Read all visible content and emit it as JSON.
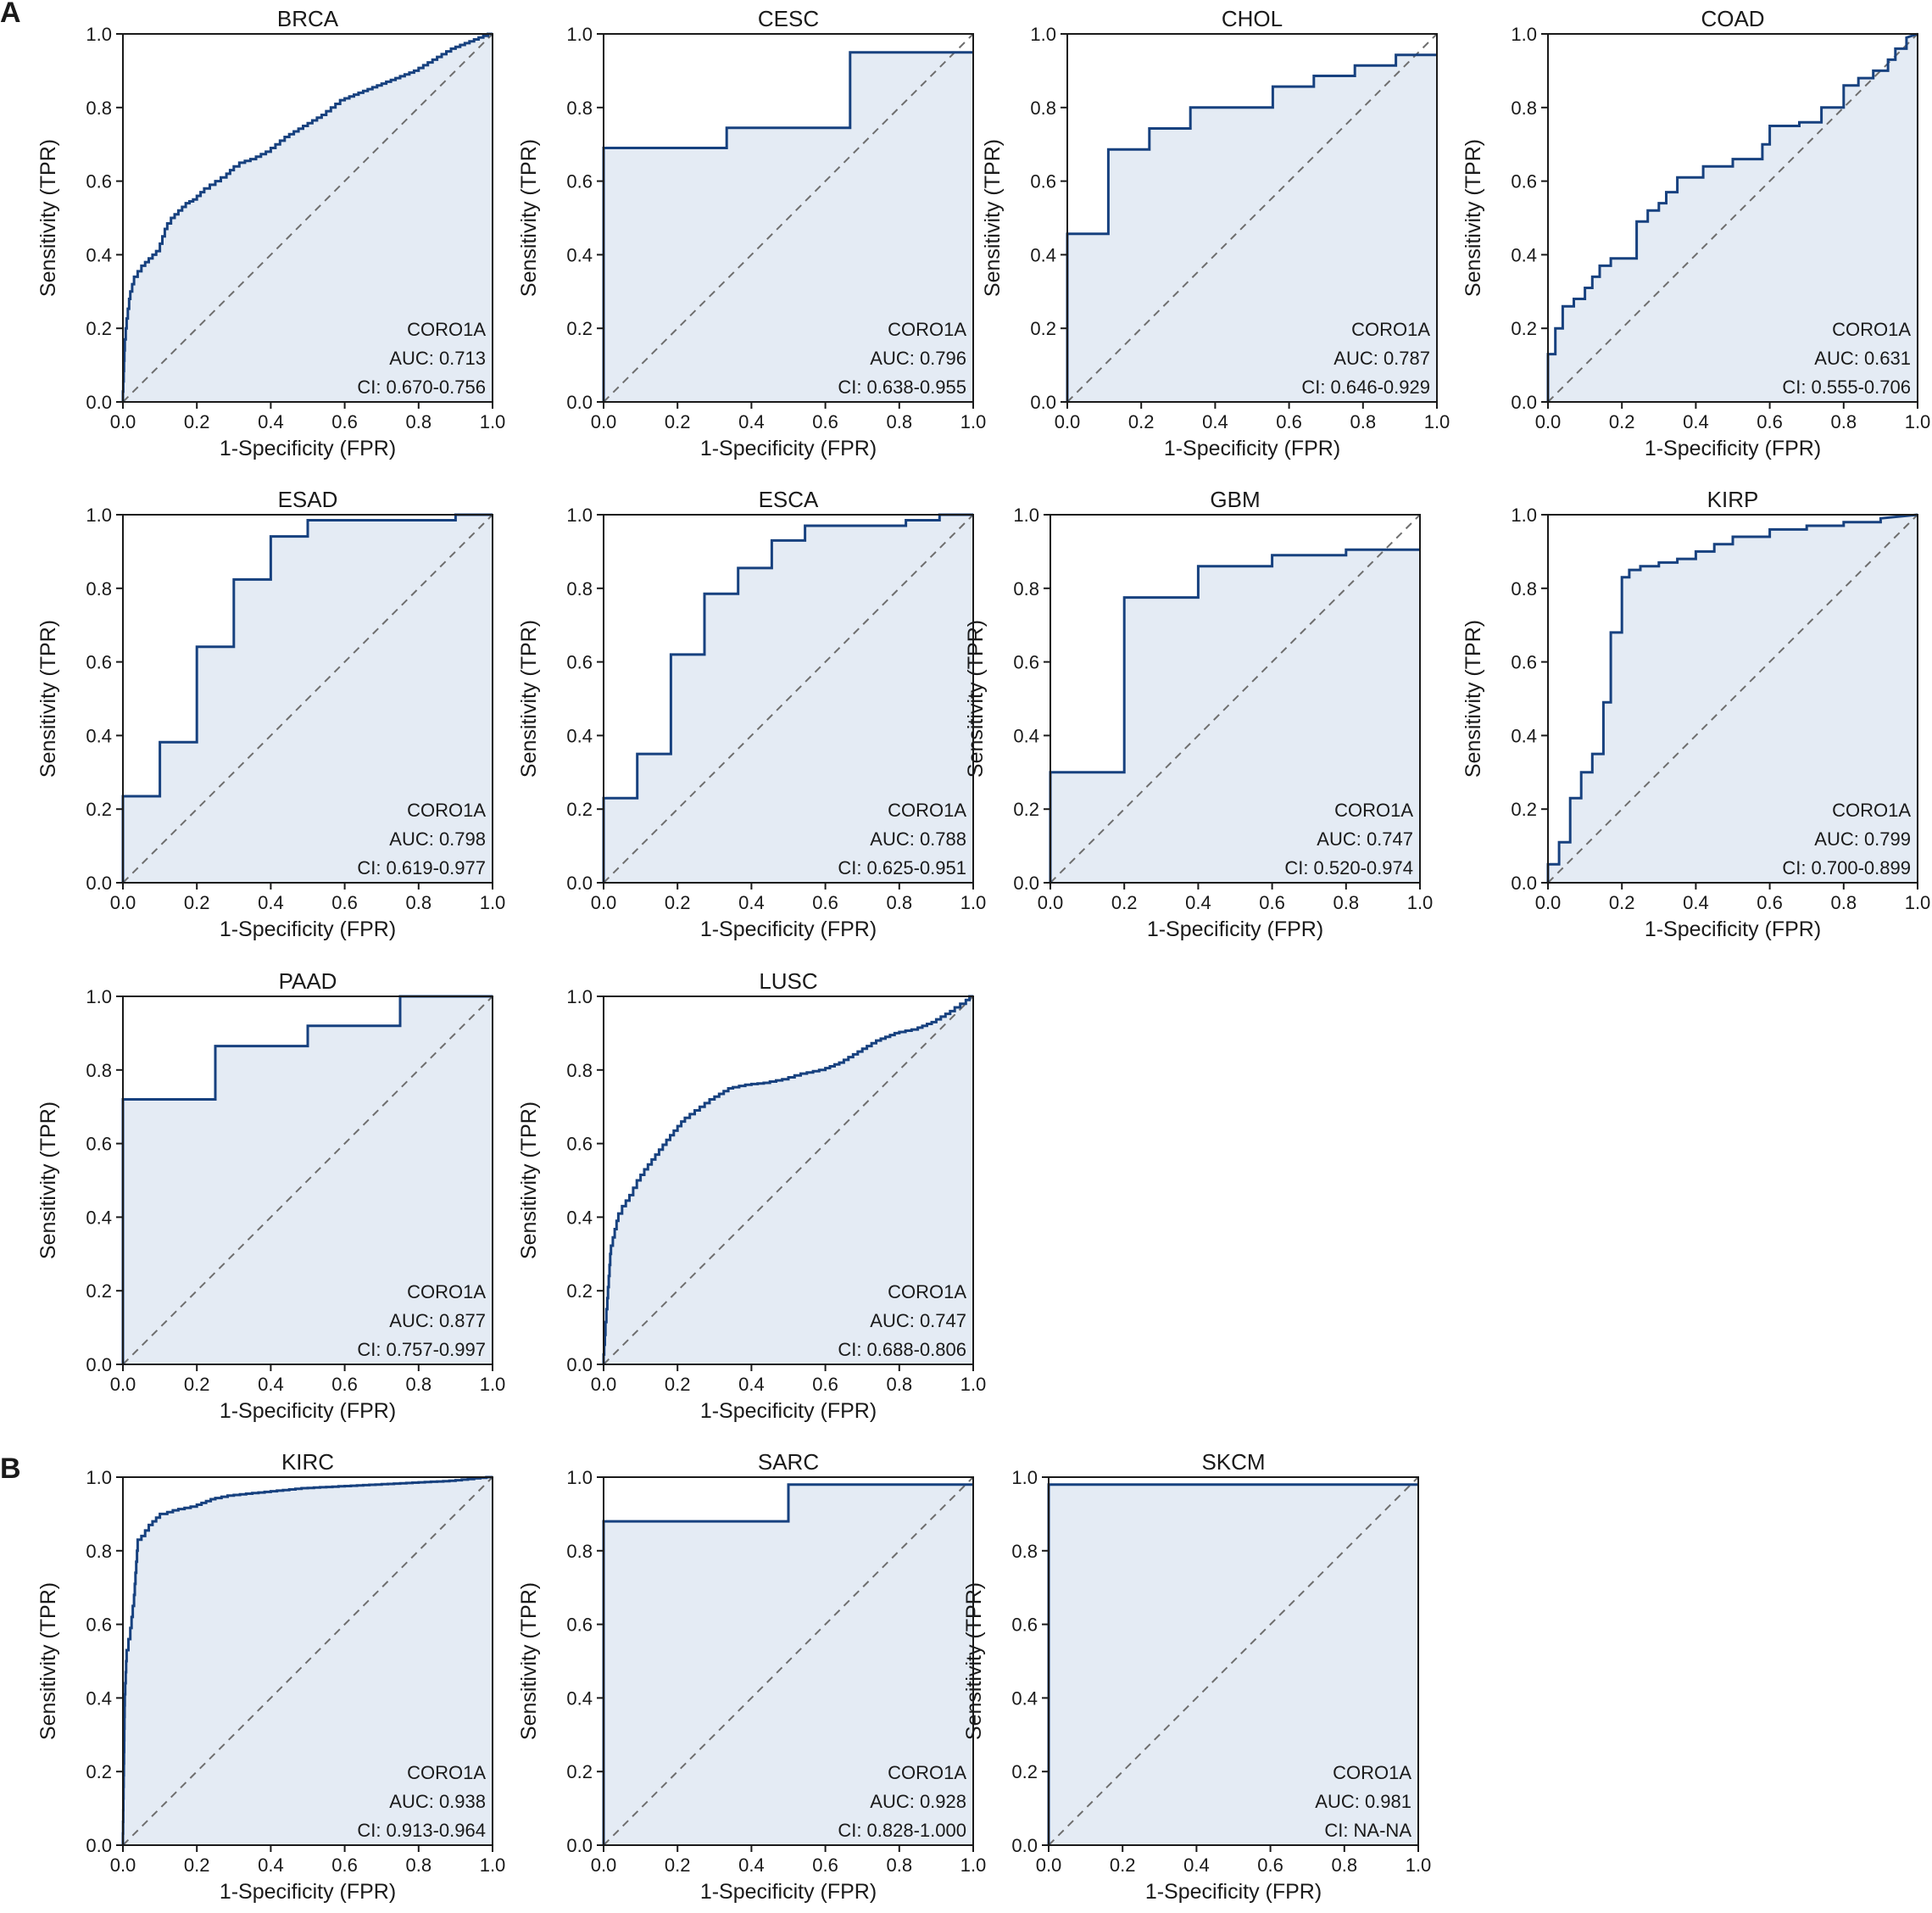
{
  "figure": {
    "panel_labels": [
      "A",
      "B"
    ],
    "colors": {
      "curve": "#17417f",
      "fill": "#e4ebf4",
      "diagonal": "#6e6e6e",
      "axis": "#1a1a1a",
      "text": "#1a1a1a",
      "background": "#ffffff"
    }
  },
  "chart_data": [
    {
      "type": "line",
      "panel": "A",
      "title": "BRCA",
      "xlabel": "1-Specificity (FPR)",
      "ylabel": "Sensitivity (TPR)",
      "xlim": [
        0,
        1
      ],
      "ylim": [
        0,
        1
      ],
      "x_ticks": [
        "0.0",
        "0.2",
        "0.4",
        "0.6",
        "0.8",
        "1.0"
      ],
      "y_ticks": [
        "0.0",
        "0.2",
        "0.4",
        "0.6",
        "0.8",
        "1.0"
      ],
      "annotation": [
        "CORO1A",
        "AUC: 0.713",
        "CI: 0.670-0.756"
      ],
      "series": [
        {
          "name": "CORO1A",
          "curve": "smooth",
          "x": [
            0,
            0.005,
            0.01,
            0.02,
            0.03,
            0.04,
            0.06,
            0.08,
            0.1,
            0.12,
            0.14,
            0.16,
            0.18,
            0.2,
            0.22,
            0.25,
            0.28,
            0.3,
            0.33,
            0.36,
            0.4,
            0.45,
            0.5,
            0.55,
            0.6,
            0.65,
            0.7,
            0.75,
            0.8,
            0.85,
            0.9,
            0.95,
            1.0
          ],
          "y": [
            0,
            0.14,
            0.2,
            0.28,
            0.32,
            0.34,
            0.37,
            0.39,
            0.41,
            0.47,
            0.5,
            0.52,
            0.54,
            0.55,
            0.57,
            0.59,
            0.61,
            0.63,
            0.65,
            0.66,
            0.68,
            0.72,
            0.75,
            0.78,
            0.82,
            0.84,
            0.86,
            0.88,
            0.9,
            0.93,
            0.96,
            0.98,
            1.0
          ]
        }
      ]
    },
    {
      "type": "line",
      "panel": "A",
      "title": "CESC",
      "xlabel": "1-Specificity (FPR)",
      "ylabel": "Sensitivity (TPR)",
      "xlim": [
        0,
        1
      ],
      "ylim": [
        0,
        1
      ],
      "x_ticks": [
        "0.0",
        "0.2",
        "0.4",
        "0.6",
        "0.8",
        "1.0"
      ],
      "y_ticks": [
        "0.0",
        "0.2",
        "0.4",
        "0.6",
        "0.8",
        "1.0"
      ],
      "annotation": [
        "CORO1A",
        "AUC: 0.796",
        "CI: 0.638-0.955"
      ],
      "series": [
        {
          "name": "CORO1A",
          "curve": "step",
          "x": [
            0,
            0,
            0.333,
            0.333,
            0.667,
            0.667,
            1.0
          ],
          "y": [
            0,
            0.69,
            0.69,
            0.745,
            0.745,
            0.95,
            0.95
          ]
        }
      ]
    },
    {
      "type": "line",
      "panel": "A",
      "title": "CHOL",
      "xlabel": "1-Specificity (FPR)",
      "ylabel": "Sensitivity (TPR)",
      "xlim": [
        0,
        1
      ],
      "ylim": [
        0,
        1
      ],
      "x_ticks": [
        "0.0",
        "0.2",
        "0.4",
        "0.6",
        "0.8",
        "1.0"
      ],
      "y_ticks": [
        "0.0",
        "0.2",
        "0.4",
        "0.6",
        "0.8",
        "1.0"
      ],
      "annotation": [
        "CORO1A",
        "AUC: 0.787",
        "CI: 0.646-0.929"
      ],
      "series": [
        {
          "name": "CORO1A",
          "curve": "step",
          "x": [
            0,
            0,
            0.111,
            0.111,
            0.222,
            0.222,
            0.333,
            0.333,
            0.556,
            0.556,
            0.667,
            0.667,
            0.778,
            0.778,
            0.889,
            0.889,
            1.0
          ],
          "y": [
            0,
            0.457,
            0.457,
            0.686,
            0.686,
            0.743,
            0.743,
            0.8,
            0.8,
            0.857,
            0.857,
            0.886,
            0.886,
            0.914,
            0.914,
            0.943,
            0.943
          ]
        }
      ]
    },
    {
      "type": "line",
      "panel": "A",
      "title": "COAD",
      "xlabel": "1-Specificity (FPR)",
      "ylabel": "Sensitivity (TPR)",
      "xlim": [
        0,
        1
      ],
      "ylim": [
        0,
        1
      ],
      "x_ticks": [
        "0.0",
        "0.2",
        "0.4",
        "0.6",
        "0.8",
        "1.0"
      ],
      "y_ticks": [
        "0.0",
        "0.2",
        "0.4",
        "0.6",
        "0.8",
        "1.0"
      ],
      "annotation": [
        "CORO1A",
        "AUC: 0.631",
        "CI: 0.555-0.706"
      ],
      "series": [
        {
          "name": "CORO1A",
          "curve": "step",
          "x": [
            0,
            0,
            0.02,
            0.02,
            0.04,
            0.04,
            0.07,
            0.07,
            0.1,
            0.1,
            0.12,
            0.12,
            0.14,
            0.14,
            0.17,
            0.17,
            0.24,
            0.24,
            0.27,
            0.27,
            0.3,
            0.3,
            0.32,
            0.32,
            0.35,
            0.35,
            0.42,
            0.42,
            0.5,
            0.5,
            0.58,
            0.58,
            0.6,
            0.6,
            0.68,
            0.68,
            0.74,
            0.74,
            0.8,
            0.8,
            0.84,
            0.84,
            0.88,
            0.88,
            0.92,
            0.92,
            0.94,
            0.94,
            0.97,
            0.97,
            1.0
          ],
          "y": [
            0,
            0.13,
            0.13,
            0.2,
            0.2,
            0.26,
            0.26,
            0.28,
            0.28,
            0.31,
            0.31,
            0.34,
            0.34,
            0.37,
            0.37,
            0.39,
            0.39,
            0.49,
            0.49,
            0.52,
            0.52,
            0.54,
            0.54,
            0.57,
            0.57,
            0.61,
            0.61,
            0.64,
            0.64,
            0.66,
            0.66,
            0.7,
            0.7,
            0.75,
            0.75,
            0.76,
            0.76,
            0.8,
            0.8,
            0.86,
            0.86,
            0.88,
            0.88,
            0.9,
            0.9,
            0.93,
            0.93,
            0.96,
            0.96,
            0.99,
            1.0
          ]
        }
      ]
    },
    {
      "type": "line",
      "panel": "A",
      "title": "ESAD",
      "xlabel": "1-Specificity (FPR)",
      "ylabel": "Sensitivity (TPR)",
      "xlim": [
        0,
        1
      ],
      "ylim": [
        0,
        1
      ],
      "x_ticks": [
        "0.0",
        "0.2",
        "0.4",
        "0.6",
        "0.8",
        "1.0"
      ],
      "y_ticks": [
        "0.0",
        "0.2",
        "0.4",
        "0.6",
        "0.8",
        "1.0"
      ],
      "annotation": [
        "CORO1A",
        "AUC: 0.798",
        "CI: 0.619-0.977"
      ],
      "series": [
        {
          "name": "CORO1A",
          "curve": "step",
          "x": [
            0,
            0,
            0.1,
            0.1,
            0.2,
            0.2,
            0.3,
            0.3,
            0.4,
            0.4,
            0.5,
            0.5,
            0.9,
            0.9,
            1.0
          ],
          "y": [
            0,
            0.235,
            0.235,
            0.382,
            0.382,
            0.641,
            0.641,
            0.824,
            0.824,
            0.941,
            0.941,
            0.985,
            0.985,
            1.0,
            1.0
          ]
        }
      ]
    },
    {
      "type": "line",
      "panel": "A",
      "title": "ESCA",
      "xlabel": "1-Specificity (FPR)",
      "ylabel": "Sensitivity (TPR)",
      "xlim": [
        0,
        1
      ],
      "ylim": [
        0,
        1
      ],
      "x_ticks": [
        "0.0",
        "0.2",
        "0.4",
        "0.6",
        "0.8",
        "1.0"
      ],
      "y_ticks": [
        "0.0",
        "0.2",
        "0.4",
        "0.6",
        "0.8",
        "1.0"
      ],
      "annotation": [
        "CORO1A",
        "AUC: 0.788",
        "CI: 0.625-0.951"
      ],
      "series": [
        {
          "name": "CORO1A",
          "curve": "step",
          "x": [
            0,
            0,
            0.091,
            0.091,
            0.182,
            0.182,
            0.273,
            0.273,
            0.364,
            0.364,
            0.455,
            0.455,
            0.545,
            0.545,
            0.818,
            0.818,
            0.909,
            0.909,
            1.0
          ],
          "y": [
            0,
            0.23,
            0.23,
            0.35,
            0.35,
            0.62,
            0.62,
            0.785,
            0.785,
            0.855,
            0.855,
            0.93,
            0.93,
            0.97,
            0.97,
            0.985,
            0.985,
            1.0,
            1.0
          ]
        }
      ]
    },
    {
      "type": "line",
      "panel": "A",
      "title": "GBM",
      "xlabel": "1-Specificity (FPR)",
      "ylabel": "Sensitivity (TPR)",
      "xlim": [
        0,
        1
      ],
      "ylim": [
        0,
        1
      ],
      "x_ticks": [
        "0.0",
        "0.2",
        "0.4",
        "0.6",
        "0.8",
        "1.0"
      ],
      "y_ticks": [
        "0.0",
        "0.2",
        "0.4",
        "0.6",
        "0.8",
        "1.0"
      ],
      "annotation": [
        "CORO1A",
        "AUC: 0.747",
        "CI: 0.520-0.974"
      ],
      "series": [
        {
          "name": "CORO1A",
          "curve": "step",
          "x": [
            0,
            0,
            0.2,
            0.2,
            0.4,
            0.4,
            0.6,
            0.6,
            0.8,
            0.8,
            1.0
          ],
          "y": [
            0,
            0.3,
            0.3,
            0.775,
            0.775,
            0.86,
            0.86,
            0.89,
            0.89,
            0.905,
            0.905
          ]
        }
      ]
    },
    {
      "type": "line",
      "panel": "A",
      "title": "KIRP",
      "xlabel": "1-Specificity (FPR)",
      "ylabel": "Sensitivity (TPR)",
      "xlim": [
        0,
        1
      ],
      "ylim": [
        0,
        1
      ],
      "x_ticks": [
        "0.0",
        "0.2",
        "0.4",
        "0.6",
        "0.8",
        "1.0"
      ],
      "y_ticks": [
        "0.0",
        "0.2",
        "0.4",
        "0.6",
        "0.8",
        "1.0"
      ],
      "annotation": [
        "CORO1A",
        "AUC: 0.799",
        "CI: 0.700-0.899"
      ],
      "series": [
        {
          "name": "CORO1A",
          "curve": "step",
          "x": [
            0,
            0,
            0.03,
            0.03,
            0.06,
            0.06,
            0.09,
            0.09,
            0.12,
            0.12,
            0.15,
            0.15,
            0.17,
            0.17,
            0.2,
            0.2,
            0.22,
            0.22,
            0.25,
            0.25,
            0.3,
            0.3,
            0.35,
            0.35,
            0.4,
            0.4,
            0.45,
            0.45,
            0.5,
            0.5,
            0.6,
            0.6,
            0.7,
            0.7,
            0.8,
            0.8,
            0.9,
            0.9,
            1.0
          ],
          "y": [
            0,
            0.05,
            0.05,
            0.11,
            0.11,
            0.23,
            0.23,
            0.3,
            0.3,
            0.35,
            0.35,
            0.49,
            0.49,
            0.68,
            0.68,
            0.83,
            0.83,
            0.85,
            0.85,
            0.86,
            0.86,
            0.87,
            0.87,
            0.88,
            0.88,
            0.9,
            0.9,
            0.92,
            0.92,
            0.94,
            0.94,
            0.96,
            0.96,
            0.97,
            0.97,
            0.98,
            0.98,
            0.99,
            1.0
          ]
        }
      ]
    },
    {
      "type": "line",
      "panel": "A",
      "title": "PAAD",
      "xlabel": "1-Specificity (FPR)",
      "ylabel": "Sensitivity (TPR)",
      "xlim": [
        0,
        1
      ],
      "ylim": [
        0,
        1
      ],
      "x_ticks": [
        "0.0",
        "0.2",
        "0.4",
        "0.6",
        "0.8",
        "1.0"
      ],
      "y_ticks": [
        "0.0",
        "0.2",
        "0.4",
        "0.6",
        "0.8",
        "1.0"
      ],
      "annotation": [
        "CORO1A",
        "AUC: 0.877",
        "CI: 0.757-0.997"
      ],
      "series": [
        {
          "name": "CORO1A",
          "curve": "step",
          "x": [
            0,
            0,
            0.25,
            0.25,
            0.5,
            0.5,
            0.75,
            0.75,
            1.0
          ],
          "y": [
            0,
            0.72,
            0.72,
            0.865,
            0.865,
            0.92,
            0.92,
            1.0,
            1.0
          ]
        }
      ]
    },
    {
      "type": "line",
      "panel": "A",
      "title": "LUSC",
      "xlabel": "1-Specificity (FPR)",
      "ylabel": "Sensitivity (TPR)",
      "xlim": [
        0,
        1
      ],
      "ylim": [
        0,
        1
      ],
      "x_ticks": [
        "0.0",
        "0.2",
        "0.4",
        "0.6",
        "0.8",
        "1.0"
      ],
      "y_ticks": [
        "0.0",
        "0.2",
        "0.4",
        "0.6",
        "0.8",
        "1.0"
      ],
      "annotation": [
        "CORO1A",
        "AUC: 0.747",
        "CI: 0.688-0.806"
      ],
      "series": [
        {
          "name": "CORO1A",
          "curve": "smooth",
          "x": [
            0,
            0.005,
            0.01,
            0.02,
            0.04,
            0.06,
            0.08,
            0.1,
            0.12,
            0.15,
            0.18,
            0.22,
            0.26,
            0.3,
            0.35,
            0.4,
            0.45,
            0.5,
            0.55,
            0.6,
            0.65,
            0.7,
            0.75,
            0.8,
            0.85,
            0.9,
            0.95,
            0.98,
            1.0
          ],
          "y": [
            0,
            0.08,
            0.15,
            0.3,
            0.39,
            0.43,
            0.46,
            0.5,
            0.53,
            0.57,
            0.61,
            0.66,
            0.69,
            0.72,
            0.75,
            0.76,
            0.765,
            0.775,
            0.79,
            0.8,
            0.82,
            0.85,
            0.88,
            0.9,
            0.91,
            0.93,
            0.96,
            0.98,
            1.0
          ]
        }
      ]
    },
    {
      "type": "line",
      "panel": "B",
      "title": "KIRC",
      "xlabel": "1-Specificity (FPR)",
      "ylabel": "Sensitivity (TPR)",
      "xlim": [
        0,
        1
      ],
      "ylim": [
        0,
        1
      ],
      "x_ticks": [
        "0.0",
        "0.2",
        "0.4",
        "0.6",
        "0.8",
        "1.0"
      ],
      "y_ticks": [
        "0.0",
        "0.2",
        "0.4",
        "0.6",
        "0.8",
        "1.0"
      ],
      "annotation": [
        "CORO1A",
        "AUC: 0.938",
        "CI: 0.913-0.964"
      ],
      "series": [
        {
          "name": "CORO1A",
          "curve": "smooth",
          "x": [
            0,
            0.005,
            0.01,
            0.02,
            0.03,
            0.04,
            0.05,
            0.06,
            0.08,
            0.1,
            0.12,
            0.15,
            0.2,
            0.25,
            0.3,
            0.4,
            0.5,
            0.6,
            0.7,
            0.8,
            0.9,
            1.0
          ],
          "y": [
            0,
            0.38,
            0.5,
            0.56,
            0.65,
            0.8,
            0.83,
            0.84,
            0.87,
            0.89,
            0.9,
            0.91,
            0.92,
            0.94,
            0.95,
            0.96,
            0.97,
            0.975,
            0.98,
            0.985,
            0.99,
            1.0
          ]
        }
      ]
    },
    {
      "type": "line",
      "panel": "B",
      "title": "SARC",
      "xlabel": "1-Specificity (FPR)",
      "ylabel": "Sensitivity (TPR)",
      "xlim": [
        0,
        1
      ],
      "ylim": [
        0,
        1
      ],
      "x_ticks": [
        "0.0",
        "0.2",
        "0.4",
        "0.6",
        "0.8",
        "1.0"
      ],
      "y_ticks": [
        "0.0",
        "0.2",
        "0.4",
        "0.6",
        "0.8",
        "1.0"
      ],
      "annotation": [
        "CORO1A",
        "AUC: 0.928",
        "CI: 0.828-1.000"
      ],
      "series": [
        {
          "name": "CORO1A",
          "curve": "step",
          "x": [
            0,
            0,
            0.5,
            0.5,
            1.0
          ],
          "y": [
            0,
            0.88,
            0.88,
            0.98,
            0.98
          ]
        }
      ]
    },
    {
      "type": "line",
      "panel": "B",
      "title": "SKCM",
      "xlabel": "1-Specificity (FPR)",
      "ylabel": "Sensitivity (TPR)",
      "xlim": [
        0,
        1
      ],
      "ylim": [
        0,
        1
      ],
      "x_ticks": [
        "0.0",
        "0.2",
        "0.4",
        "0.6",
        "0.8",
        "1.0"
      ],
      "y_ticks": [
        "0.0",
        "0.2",
        "0.4",
        "0.6",
        "0.8",
        "1.0"
      ],
      "annotation": [
        "CORO1A",
        "AUC: 0.981",
        "CI: NA-NA"
      ],
      "series": [
        {
          "name": "CORO1A",
          "curve": "step",
          "x": [
            0,
            0,
            1.0
          ],
          "y": [
            0,
            0.98,
            0.98
          ]
        }
      ]
    }
  ]
}
